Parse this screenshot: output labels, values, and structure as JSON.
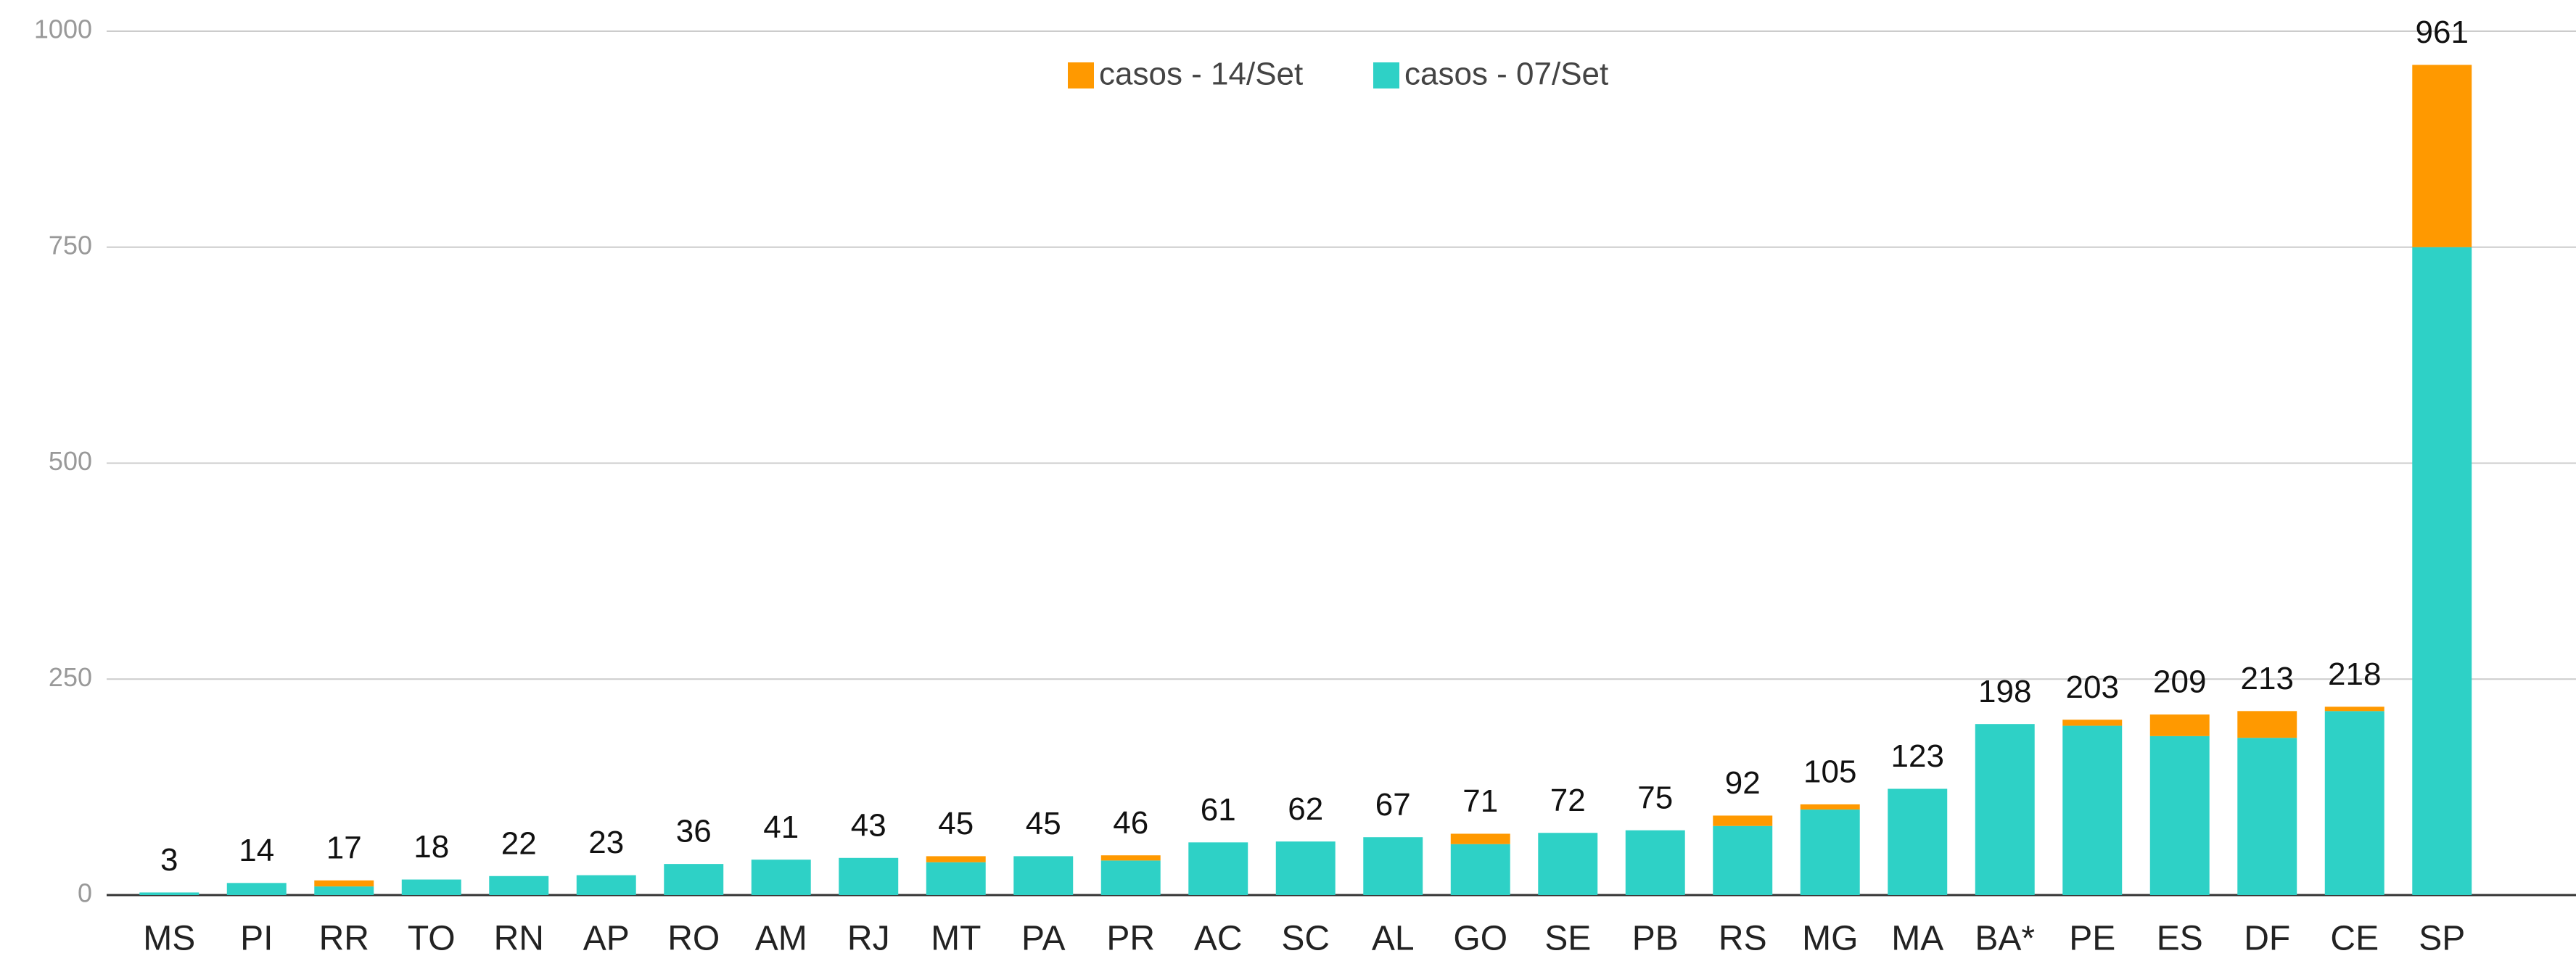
{
  "chart_data": {
    "type": "stacked_bar",
    "categories": [
      "MS",
      "PI",
      "RR",
      "TO",
      "RN",
      "AP",
      "RO",
      "AM",
      "RJ",
      "MT",
      "PA",
      "PR",
      "AC",
      "SC",
      "AL",
      "GO",
      "SE",
      "PB",
      "RS",
      "MG",
      "MA",
      "BA*",
      "PE",
      "ES",
      "DF",
      "CE",
      "SP"
    ],
    "series": [
      {
        "name": "casos - 07/Set",
        "color": "#2ed1c6",
        "values": [
          3,
          14,
          10,
          18,
          22,
          23,
          36,
          41,
          43,
          38,
          45,
          40,
          61,
          62,
          67,
          59,
          72,
          75,
          80,
          99,
          123,
          198,
          196,
          184,
          182,
          213,
          750
        ]
      },
      {
        "name": "casos - 14/Set",
        "color": "#ff9900",
        "values": [
          0,
          0,
          7,
          0,
          0,
          0,
          0,
          0,
          0,
          7,
          0,
          6,
          0,
          0,
          0,
          12,
          0,
          0,
          12,
          6,
          0,
          0,
          7,
          25,
          31,
          5,
          211
        ]
      }
    ],
    "totals": [
      3,
      14,
      17,
      18,
      22,
      23,
      36,
      41,
      43,
      45,
      45,
      46,
      61,
      62,
      67,
      71,
      72,
      75,
      92,
      105,
      123,
      198,
      203,
      209,
      213,
      218,
      961
    ],
    "ylim": [
      0,
      1000
    ],
    "yticks": [
      0,
      250,
      500,
      750,
      1000
    ],
    "grid": true,
    "legend": "top"
  }
}
